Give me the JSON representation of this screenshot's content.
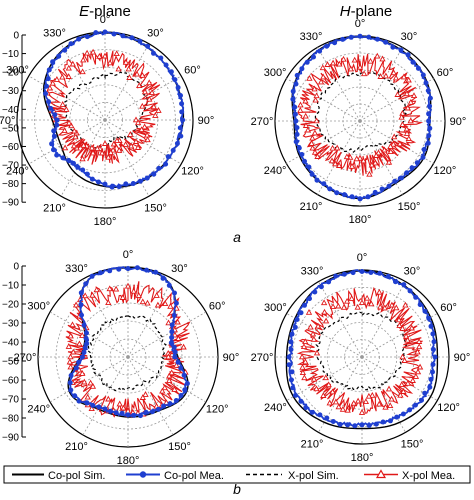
{
  "figure": {
    "panel_labels": [
      "a",
      "b"
    ],
    "column_titles": [
      {
        "prefix": "E",
        "suffix": "-plane"
      },
      {
        "prefix": "H",
        "suffix": "-plane"
      }
    ]
  },
  "colors": {
    "co_sim": "#000000",
    "co_mea": "#1f3fd0",
    "x_sim": "#000000",
    "x_mea": "#e01818",
    "grid": "#9a9a9a"
  },
  "legend": {
    "items": [
      {
        "label": "Co-pol Sim.",
        "style": "solid-black"
      },
      {
        "label": "Co-pol Mea.",
        "style": "blue-dots"
      },
      {
        "label": "X-pol Sim.",
        "style": "dashed-black"
      },
      {
        "label": "X-pol Mea.",
        "style": "red-triangles"
      }
    ]
  },
  "chart_data": [
    {
      "type": "polar-line",
      "panel": "a",
      "title": "E-plane",
      "r_axis": {
        "ticks": [
          "0",
          "−10",
          "−20",
          "−30",
          "−40",
          "−50",
          "−60",
          "−70",
          "−80",
          "−90"
        ],
        "range": [
          -90,
          0
        ]
      },
      "angle_ticks": [
        "0°",
        "30°",
        "60°",
        "90°",
        "120°",
        "150°",
        "180°",
        "210°",
        "240°",
        "270°",
        "300°",
        "330°"
      ],
      "angles_deg": [
        0,
        30,
        60,
        90,
        120,
        150,
        180,
        210,
        240,
        270,
        300,
        330
      ],
      "series": [
        {
          "name": "Co-pol Sim.",
          "values_db": [
            -1,
            -4,
            -8,
            -10,
            -14,
            -17,
            -22,
            -28,
            -38,
            -36,
            -18,
            -6
          ]
        },
        {
          "name": "Co-pol Mea.",
          "values_db": [
            -1,
            -4,
            -8,
            -11,
            -14,
            -18,
            -24,
            -35,
            -30,
            -40,
            -20,
            -7
          ]
        },
        {
          "name": "X-pol Sim.",
          "values_db": [
            -45,
            -38,
            -42,
            -55,
            -60,
            -68,
            -64,
            -58,
            -57,
            -52,
            -45,
            -48
          ]
        },
        {
          "name": "X-pol Mea.",
          "values_db": [
            -28,
            -30,
            -35,
            -48,
            -50,
            -55,
            -55,
            -52,
            -50,
            -46,
            -32,
            -28
          ]
        }
      ]
    },
    {
      "type": "polar-line",
      "panel": "a",
      "title": "H-plane",
      "r_axis": {
        "range": [
          -90,
          0
        ]
      },
      "angle_ticks": [
        "0°",
        "30°",
        "60°",
        "90°",
        "120°",
        "150°",
        "180°",
        "210°",
        "240°",
        "270°",
        "300°",
        "330°"
      ],
      "angles_deg": [
        0,
        30,
        60,
        90,
        120,
        150,
        180,
        210,
        240,
        270,
        300,
        330
      ],
      "series": [
        {
          "name": "Co-pol Sim.",
          "values_db": [
            -1,
            -3,
            -8,
            -16,
            -12,
            -14,
            -8,
            -12,
            -16,
            -20,
            -10,
            -3
          ]
        },
        {
          "name": "Co-pol Mea.",
          "values_db": [
            -1,
            -4,
            -9,
            -17,
            -14,
            -16,
            -9,
            -13,
            -18,
            -22,
            -11,
            -4
          ]
        },
        {
          "name": "X-pol Sim.",
          "values_db": [
            -40,
            -38,
            -40,
            -44,
            -50,
            -60,
            -60,
            -55,
            -50,
            -45,
            -42,
            -40
          ]
        },
        {
          "name": "X-pol Mea.",
          "values_db": [
            -30,
            -28,
            -32,
            -36,
            -40,
            -45,
            -42,
            -44,
            -38,
            -36,
            -30,
            -30
          ]
        }
      ]
    },
    {
      "type": "polar-line",
      "panel": "b",
      "title": "E-plane",
      "r_axis": {
        "ticks": [
          "0",
          "−10",
          "−20",
          "−30",
          "−40",
          "−50",
          "−60",
          "−70",
          "−80",
          "−90"
        ],
        "range": [
          -90,
          0
        ]
      },
      "angle_ticks": [
        "0°",
        "30°",
        "60°",
        "90°",
        "120°",
        "150°",
        "180°",
        "210°",
        "240°",
        "270°",
        "300°",
        "330°"
      ],
      "angles_deg": [
        0,
        30,
        60,
        90,
        120,
        150,
        180,
        210,
        240,
        270,
        300,
        330
      ],
      "series": [
        {
          "name": "Co-pol Sim.",
          "values_db": [
            -1,
            -6,
            -40,
            -40,
            -22,
            -28,
            -30,
            -30,
            -22,
            -42,
            -40,
            -5
          ]
        },
        {
          "name": "Co-pol Mea.",
          "values_db": [
            -1,
            -6,
            -40,
            -42,
            -24,
            -30,
            -32,
            -32,
            -24,
            -44,
            -42,
            -6
          ]
        },
        {
          "name": "X-pol Sim.",
          "values_db": [
            -50,
            -48,
            -50,
            -55,
            -55,
            -60,
            -58,
            -55,
            -55,
            -52,
            -50,
            -50
          ]
        },
        {
          "name": "X-pol Mea.",
          "values_db": [
            -25,
            -22,
            -30,
            -45,
            -35,
            -38,
            -40,
            -35,
            -38,
            -40,
            -30,
            -22
          ]
        }
      ]
    },
    {
      "type": "polar-line",
      "panel": "b",
      "title": "H-plane",
      "r_axis": {
        "range": [
          -90,
          0
        ]
      },
      "angle_ticks": [
        "0°",
        "30°",
        "60°",
        "90°",
        "120°",
        "150°",
        "180°",
        "210°",
        "240°",
        "270°",
        "300°",
        "330°"
      ],
      "angles_deg": [
        0,
        30,
        60,
        90,
        120,
        150,
        180,
        210,
        240,
        270,
        300,
        330
      ],
      "series": [
        {
          "name": "Co-pol Sim.",
          "values_db": [
            -1,
            -4,
            -8,
            -12,
            -8,
            -12,
            -16,
            -12,
            -8,
            -12,
            -10,
            -4
          ]
        },
        {
          "name": "Co-pol Mea.",
          "values_db": [
            -1,
            -5,
            -10,
            -16,
            -14,
            -18,
            -20,
            -16,
            -12,
            -16,
            -12,
            -5
          ]
        },
        {
          "name": "X-pol Sim.",
          "values_db": [
            -45,
            -42,
            -40,
            -48,
            -52,
            -55,
            -58,
            -55,
            -50,
            -45,
            -42,
            -45
          ]
        },
        {
          "name": "X-pol Mea.",
          "values_db": [
            -28,
            -30,
            -32,
            -38,
            -36,
            -40,
            -42,
            -40,
            -36,
            -34,
            -30,
            -28
          ]
        }
      ]
    }
  ]
}
